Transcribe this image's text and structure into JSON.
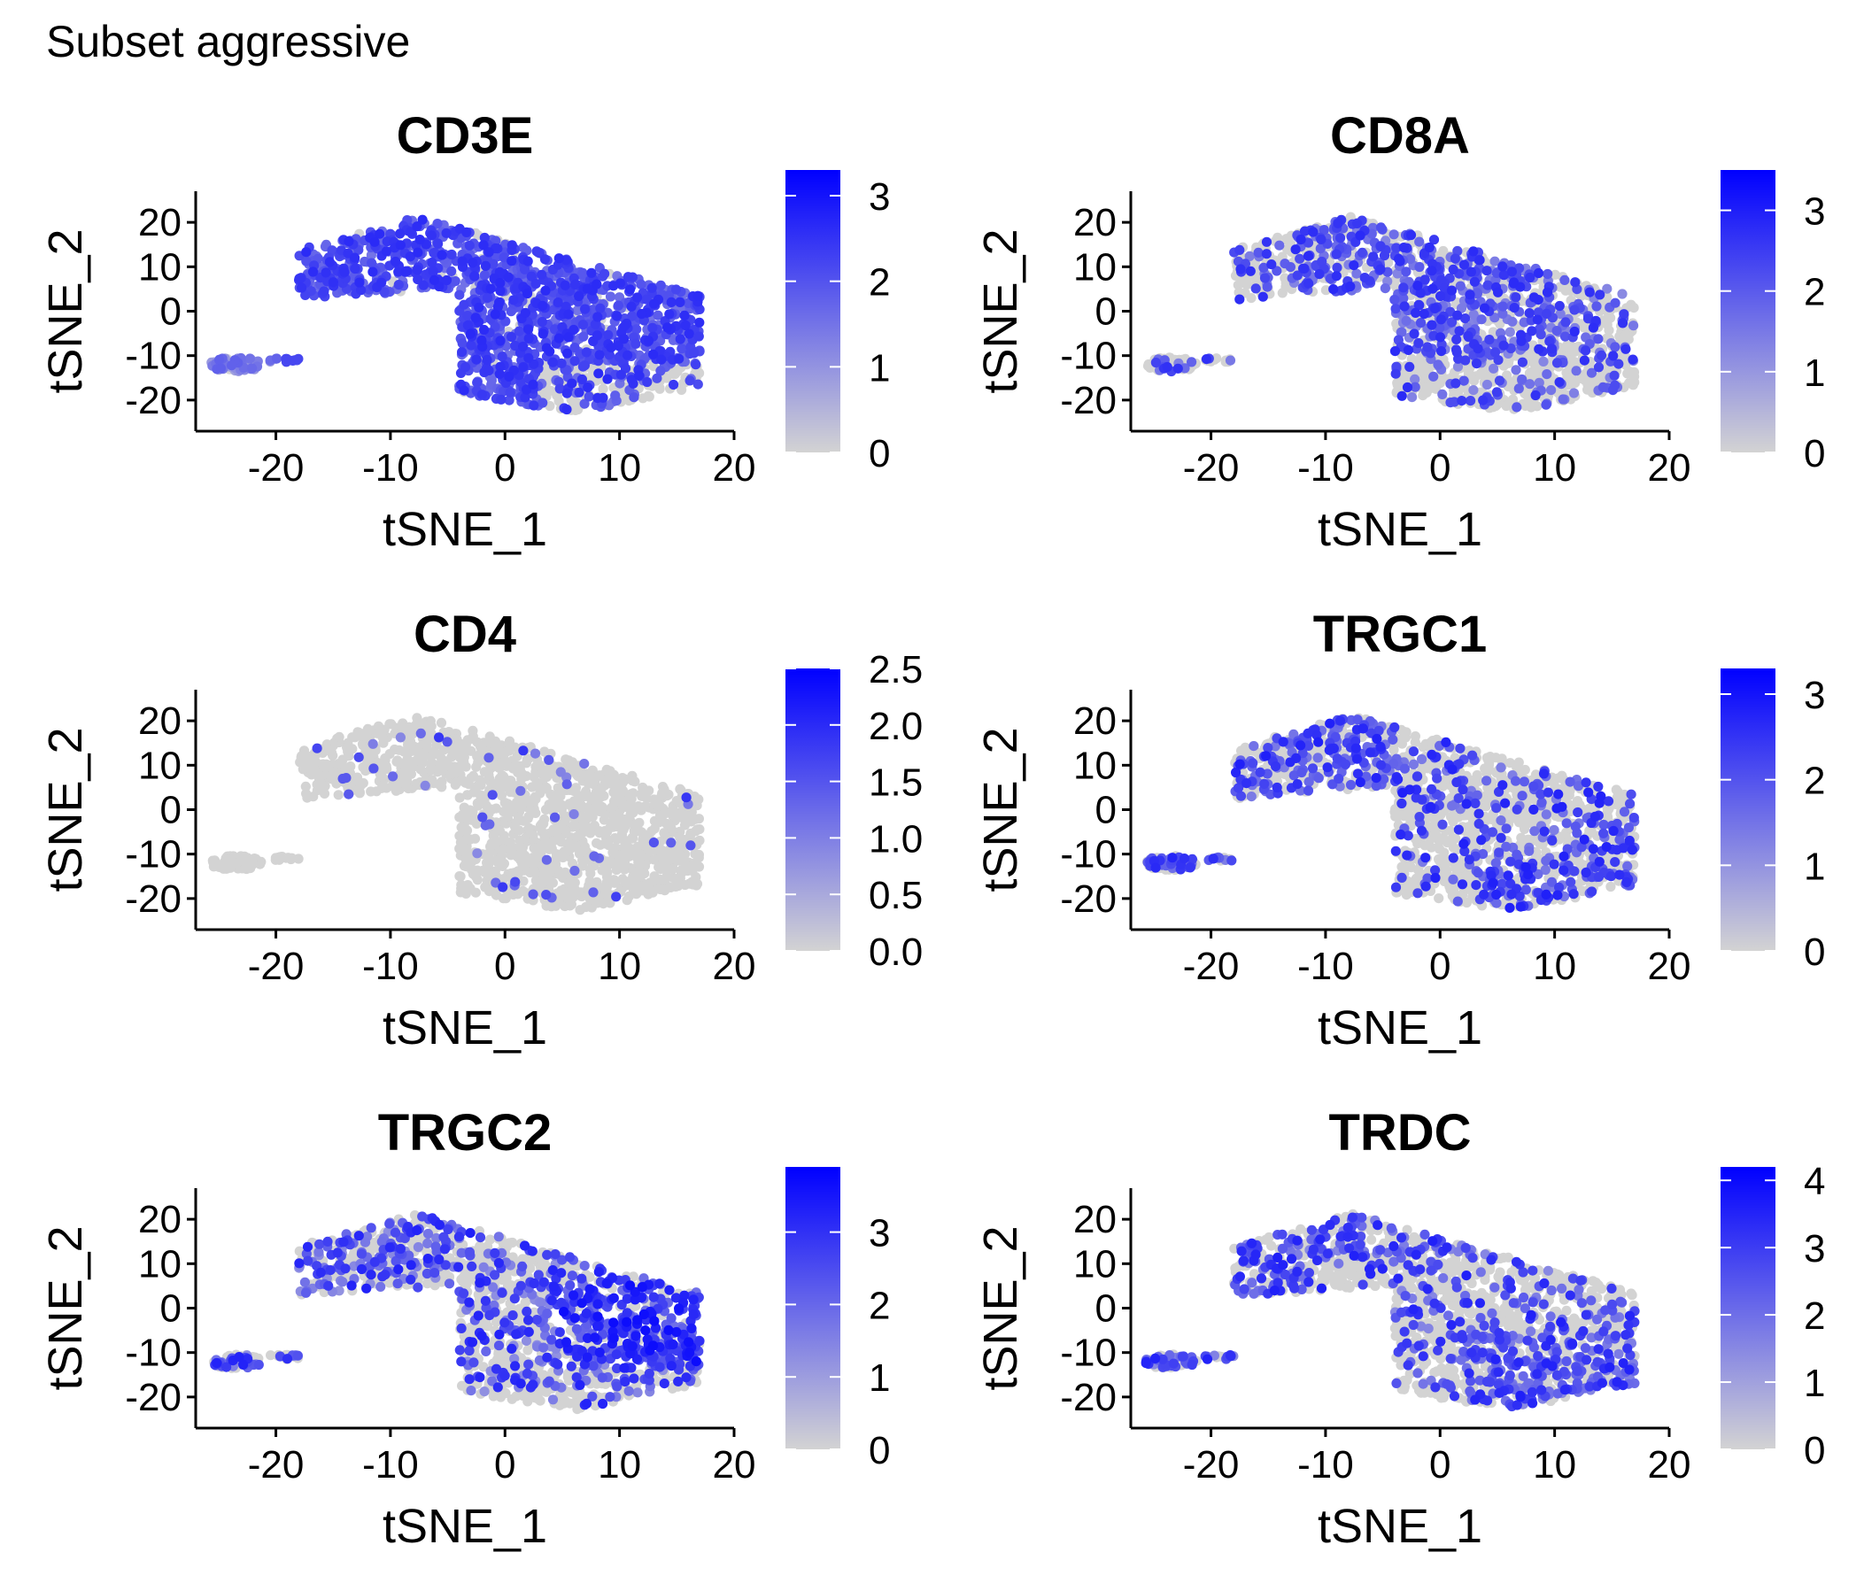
{
  "figure_title": "Subset aggressive",
  "colors": {
    "low": "#d3d3d3",
    "high": "#0000ff",
    "axis": "#000000"
  },
  "chart_data": [
    {
      "type": "scatter",
      "title": "CD3E",
      "xlabel": "tSNE_1",
      "ylabel": "tSNE_2",
      "xlim": [
        -27,
        20
      ],
      "ylim": [
        -27,
        27
      ],
      "xticks": [
        -20,
        -10,
        0,
        10,
        20
      ],
      "yticks": [
        20,
        10,
        0,
        -10,
        -20
      ],
      "xtick_labels": [
        "-20",
        "-10",
        "0",
        "10",
        "20"
      ],
      "ytick_labels": [
        "20",
        "10",
        "0",
        "-10",
        "-20"
      ],
      "color_scale": {
        "min": 0,
        "max": 3.3,
        "ticks": [
          0,
          1,
          2,
          3
        ],
        "labels": [
          "0",
          "1",
          "2",
          "3"
        ]
      },
      "pattern": "high-left-low-lower-right",
      "seed": 11
    },
    {
      "type": "scatter",
      "title": "CD8A",
      "xlabel": "tSNE_1",
      "ylabel": "tSNE_2",
      "xlim": [
        -27,
        20
      ],
      "ylim": [
        -27,
        27
      ],
      "xticks": [
        -20,
        -10,
        0,
        10,
        20
      ],
      "yticks": [
        20,
        10,
        0,
        -10,
        -20
      ],
      "xtick_labels": [
        "-20",
        "-10",
        "0",
        "10",
        "20"
      ],
      "ytick_labels": [
        "20",
        "10",
        "0",
        "-10",
        "-20"
      ],
      "color_scale": {
        "min": 0,
        "max": 3.5,
        "ticks": [
          0,
          1,
          2,
          3
        ],
        "labels": [
          "0",
          "1",
          "2",
          "3"
        ]
      },
      "pattern": "mixed-center",
      "seed": 23
    },
    {
      "type": "scatter",
      "title": "CD4",
      "xlabel": "tSNE_1",
      "ylabel": "tSNE_2",
      "xlim": [
        -27,
        20
      ],
      "ylim": [
        -27,
        27
      ],
      "xticks": [
        -20,
        -10,
        0,
        10,
        20
      ],
      "yticks": [
        20,
        10,
        0,
        -10,
        -20
      ],
      "xtick_labels": [
        "-20",
        "-10",
        "0",
        "10",
        "20"
      ],
      "ytick_labels": [
        "20",
        "10",
        "0",
        "-10",
        "-20"
      ],
      "color_scale": {
        "min": 0,
        "max": 2.5,
        "ticks": [
          0,
          0.5,
          1,
          1.5,
          2,
          2.5
        ],
        "labels": [
          "0.0",
          "0.5",
          "1.0",
          "1.5",
          "2.0",
          "2.5"
        ]
      },
      "pattern": "sparse",
      "seed": 37
    },
    {
      "type": "scatter",
      "title": "TRGC1",
      "xlabel": "tSNE_1",
      "ylabel": "tSNE_2",
      "xlim": [
        -27,
        20
      ],
      "ylim": [
        -27,
        27
      ],
      "xticks": [
        -20,
        -10,
        0,
        10,
        20
      ],
      "yticks": [
        20,
        10,
        0,
        -10,
        -20
      ],
      "xtick_labels": [
        "-20",
        "-10",
        "0",
        "10",
        "20"
      ],
      "ytick_labels": [
        "20",
        "10",
        "0",
        "-10",
        "-20"
      ],
      "color_scale": {
        "min": 0,
        "max": 3.3,
        "ticks": [
          0,
          1,
          2,
          3
        ],
        "labels": [
          "0",
          "1",
          "2",
          "3"
        ]
      },
      "pattern": "mixed-broad",
      "seed": 41
    },
    {
      "type": "scatter",
      "title": "TRGC2",
      "xlabel": "tSNE_1",
      "ylabel": "tSNE_2",
      "xlim": [
        -27,
        20
      ],
      "ylim": [
        -27,
        27
      ],
      "xticks": [
        -20,
        -10,
        0,
        10,
        20
      ],
      "yticks": [
        20,
        10,
        0,
        -10,
        -20
      ],
      "xtick_labels": [
        "-20",
        "-10",
        "0",
        "10",
        "20"
      ],
      "ytick_labels": [
        "20",
        "10",
        "0",
        "-10",
        "-20"
      ],
      "color_scale": {
        "min": 0,
        "max": 3.9,
        "ticks": [
          0,
          1,
          2,
          3
        ],
        "labels": [
          "0",
          "1",
          "2",
          "3"
        ]
      },
      "pattern": "high-right",
      "seed": 53
    },
    {
      "type": "scatter",
      "title": "TRDC",
      "xlabel": "tSNE_1",
      "ylabel": "tSNE_2",
      "xlim": [
        -27,
        20
      ],
      "ylim": [
        -27,
        27
      ],
      "xticks": [
        -20,
        -10,
        0,
        10,
        20
      ],
      "yticks": [
        20,
        10,
        0,
        -10,
        -20
      ],
      "xtick_labels": [
        "-20",
        "-10",
        "0",
        "10",
        "20"
      ],
      "ytick_labels": [
        "20",
        "10",
        "0",
        "-10",
        "-20"
      ],
      "color_scale": {
        "min": 0,
        "max": 4.2,
        "ticks": [
          0,
          1,
          2,
          3,
          4
        ],
        "labels": [
          "0",
          "1",
          "2",
          "3",
          "4"
        ]
      },
      "pattern": "mixed-edges",
      "seed": 67
    }
  ]
}
